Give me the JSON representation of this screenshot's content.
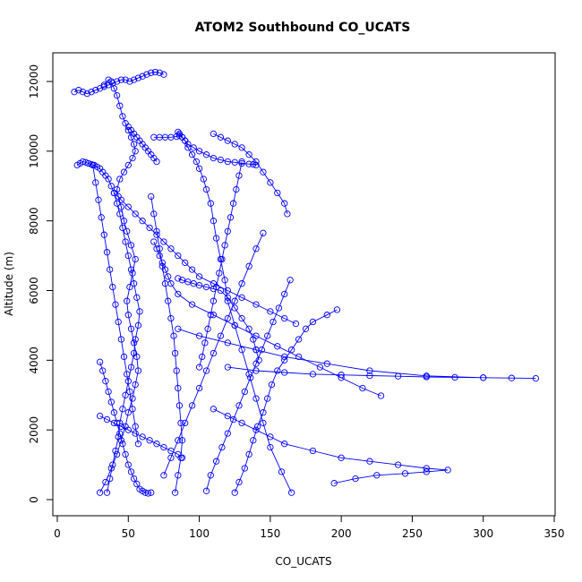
{
  "chart_data": {
    "type": "line",
    "title": "ATOM2 Southbound CO_UCATS",
    "xlabel": "CO_UCATS",
    "ylabel": "Altitude (m)",
    "xlim": [
      0,
      350
    ],
    "ylim": [
      0,
      12500
    ],
    "xticks": [
      0,
      50,
      100,
      150,
      200,
      250,
      300,
      350
    ],
    "yticks": [
      0,
      2000,
      4000,
      6000,
      8000,
      10000,
      12000
    ],
    "grid": false,
    "legend": "none",
    "line_color": "#0000ff",
    "marker": "open-circle",
    "series": [
      {
        "x": [
          30,
          34,
          38,
          42,
          45,
          48,
          50,
          53,
          55,
          57,
          56,
          54,
          52,
          50,
          49,
          51,
          53,
          55,
          52,
          49,
          47,
          45,
          43,
          42,
          44,
          47,
          50,
          53,
          55,
          54,
          52,
          50,
          48,
          46,
          44,
          42,
          40,
          38,
          36,
          33
        ],
        "y": [
          200,
          500,
          900,
          1300,
          1700,
          2100,
          2500,
          2900,
          3300,
          3700,
          4100,
          4500,
          4900,
          5300,
          5700,
          6100,
          6500,
          6900,
          7300,
          7700,
          8000,
          8400,
          8700,
          8900,
          9200,
          9400,
          9600,
          9800,
          10000,
          10200,
          10400,
          10600,
          10800,
          11000,
          11300,
          11600,
          11800,
          12000,
          12050,
          11900
        ]
      },
      {
        "x": [
          35,
          37,
          39,
          41,
          43,
          44,
          46,
          48,
          50,
          52,
          54,
          55,
          57,
          58,
          56,
          54,
          52,
          50,
          48,
          46,
          44,
          42,
          40,
          38,
          36,
          34,
          32,
          30,
          28,
          26,
          24,
          22,
          20,
          18,
          16,
          14
        ],
        "y": [
          200,
          600,
          1000,
          1400,
          1800,
          2200,
          2600,
          3000,
          3400,
          3800,
          4200,
          4600,
          5000,
          5400,
          5800,
          6200,
          6600,
          7000,
          7400,
          7800,
          8200,
          8500,
          8800,
          9000,
          9200,
          9300,
          9400,
          9500,
          9550,
          9600,
          9620,
          9650,
          9680,
          9700,
          9650,
          9600
        ]
      },
      {
        "x": [
          125,
          128,
          132,
          135,
          138,
          141,
          145,
          148,
          151,
          155,
          160,
          165,
          170,
          175,
          180,
          190,
          197
        ],
        "y": [
          200,
          500,
          900,
          1300,
          1700,
          2100,
          2500,
          2900,
          3300,
          3700,
          4000,
          4300,
          4600,
          4900,
          5100,
          5300,
          5450
        ]
      },
      {
        "x": [
          195,
          210,
          225,
          245,
          260,
          275,
          260,
          240,
          220,
          200,
          180,
          160,
          150,
          140,
          130,
          120,
          110
        ],
        "y": [
          470,
          600,
          700,
          750,
          800,
          850,
          900,
          1000,
          1100,
          1200,
          1400,
          1600,
          1800,
          2000,
          2200,
          2400,
          2600
        ]
      },
      {
        "x": [
          120,
          140,
          160,
          180,
          200,
          220,
          240,
          260,
          280,
          300,
          320,
          337,
          300,
          260,
          220,
          190,
          160,
          140,
          120,
          100,
          85
        ],
        "y": [
          3800,
          3700,
          3650,
          3600,
          3580,
          3560,
          3540,
          3520,
          3510,
          3500,
          3490,
          3480,
          3500,
          3550,
          3700,
          3900,
          4100,
          4300,
          4500,
          4700,
          4900
        ]
      },
      {
        "x": [
          228,
          215,
          200,
          185,
          170,
          155,
          140,
          125,
          110,
          95,
          85,
          80,
          78,
          76,
          74,
          72,
          70,
          68
        ],
        "y": [
          2980,
          3200,
          3500,
          3800,
          4100,
          4400,
          4700,
          5000,
          5300,
          5600,
          5900,
          6200,
          6400,
          6600,
          6800,
          7000,
          7200,
          7400
        ]
      },
      {
        "x": [
          165,
          158,
          150,
          145,
          140,
          135,
          130,
          125,
          120,
          118,
          115,
          112,
          110,
          108,
          105,
          103,
          100,
          98,
          95,
          92,
          90,
          88,
          86,
          85
        ],
        "y": [
          200,
          800,
          1500,
          2200,
          2900,
          3600,
          4300,
          5000,
          5700,
          6300,
          6900,
          7500,
          8000,
          8500,
          8900,
          9200,
          9500,
          9700,
          9900,
          10100,
          10300,
          10400,
          10500,
          10550
        ]
      },
      {
        "x": [
          85,
          88,
          92,
          96,
          100,
          105,
          110,
          115,
          120,
          125,
          130,
          135,
          138,
          140,
          142
        ],
        "y": [
          6350,
          6300,
          6250,
          6200,
          6150,
          6100,
          6050,
          6000,
          5800,
          5500,
          5200,
          4900,
          4600,
          4300,
          4000
        ]
      },
      {
        "x": [
          12,
          15,
          18,
          21,
          24,
          27,
          30,
          33,
          36,
          39,
          42,
          45,
          48,
          51,
          54,
          57,
          60,
          63,
          66,
          69,
          72,
          75
        ],
        "y": [
          11700,
          11750,
          11700,
          11650,
          11700,
          11750,
          11800,
          11850,
          11900,
          11950,
          12000,
          12050,
          12050,
          12000,
          12050,
          12100,
          12150,
          12200,
          12250,
          12270,
          12250,
          12200
        ]
      },
      {
        "x": [
          68,
          72,
          76,
          80,
          84,
          86,
          88,
          90,
          92,
          96,
          100,
          105,
          110,
          115,
          120,
          125,
          130,
          135,
          138,
          140
        ],
        "y": [
          10400,
          10400,
          10400,
          10400,
          10420,
          10450,
          10400,
          10300,
          10200,
          10100,
          10000,
          9900,
          9800,
          9750,
          9700,
          9680,
          9650,
          9630,
          9620,
          9600
        ]
      },
      {
        "x": [
          40,
          45,
          50,
          55,
          60,
          65,
          70,
          75,
          80,
          85,
          90,
          95,
          100,
          110,
          120,
          130,
          140,
          150,
          160,
          168
        ],
        "y": [
          8800,
          8600,
          8400,
          8200,
          8000,
          7800,
          7600,
          7400,
          7200,
          7000,
          6800,
          6600,
          6400,
          6200,
          6000,
          5800,
          5600,
          5400,
          5200,
          5050
        ]
      },
      {
        "x": [
          30,
          32,
          34,
          36,
          38,
          40,
          42,
          44,
          46,
          48,
          50,
          52,
          54,
          56,
          58,
          60,
          62,
          64,
          66
        ],
        "y": [
          3950,
          3700,
          3400,
          3100,
          2800,
          2500,
          2200,
          1900,
          1600,
          1300,
          1000,
          800,
          600,
          450,
          300,
          250,
          200,
          180,
          200
        ]
      },
      {
        "x": [
          83,
          85,
          87,
          88,
          87,
          86,
          85,
          84,
          83,
          82,
          80,
          78,
          76,
          74,
          72,
          70,
          68,
          66
        ],
        "y": [
          200,
          700,
          1200,
          1700,
          2200,
          2700,
          3200,
          3700,
          4200,
          4700,
          5200,
          5700,
          6200,
          6700,
          7200,
          7700,
          8200,
          8700
        ]
      },
      {
        "x": [
          105,
          108,
          112,
          116,
          120,
          124,
          128,
          132,
          136,
          140,
          144,
          148,
          152,
          156,
          160,
          164
        ],
        "y": [
          250,
          700,
          1100,
          1500,
          1900,
          2300,
          2700,
          3100,
          3500,
          3900,
          4300,
          4700,
          5100,
          5500,
          5900,
          6300
        ]
      },
      {
        "x": [
          57,
          55,
          53,
          51,
          49,
          47,
          45,
          43,
          41,
          39,
          37,
          35,
          33,
          31,
          29,
          27,
          25
        ],
        "y": [
          1600,
          2100,
          2600,
          3100,
          3600,
          4100,
          4600,
          5100,
          5600,
          6100,
          6600,
          7100,
          7600,
          8100,
          8600,
          9100,
          9600
        ]
      },
      {
        "x": [
          130,
          128,
          126,
          124,
          122,
          120,
          118,
          116,
          114,
          112,
          110,
          108,
          106,
          104,
          102,
          100
        ],
        "y": [
          9700,
          9300,
          8900,
          8500,
          8100,
          7700,
          7300,
          6900,
          6500,
          6100,
          5700,
          5300,
          4900,
          4500,
          4100,
          3800
        ]
      },
      {
        "x": [
          145,
          140,
          135,
          130,
          125,
          120,
          115,
          110,
          105,
          100,
          95,
          90,
          85,
          80,
          75
        ],
        "y": [
          7650,
          7200,
          6700,
          6200,
          5700,
          5200,
          4700,
          4200,
          3700,
          3200,
          2700,
          2200,
          1700,
          1200,
          700
        ]
      },
      {
        "x": [
          50,
          52,
          54,
          56,
          58,
          60,
          62,
          64,
          66,
          68,
          70
        ],
        "y": [
          10700,
          10600,
          10500,
          10400,
          10300,
          10200,
          10100,
          10000,
          9900,
          9800,
          9700
        ]
      },
      {
        "x": [
          110,
          115,
          120,
          125,
          130,
          135,
          140,
          145,
          150,
          155,
          160,
          162
        ],
        "y": [
          10500,
          10400,
          10300,
          10200,
          10100,
          9900,
          9700,
          9400,
          9100,
          8800,
          8500,
          8200
        ]
      },
      {
        "x": [
          30,
          35,
          40,
          45,
          50,
          55,
          60,
          65,
          70,
          75,
          80,
          85,
          88
        ],
        "y": [
          2400,
          2300,
          2200,
          2100,
          2000,
          1900,
          1800,
          1700,
          1600,
          1500,
          1400,
          1300,
          1200
        ]
      }
    ]
  }
}
